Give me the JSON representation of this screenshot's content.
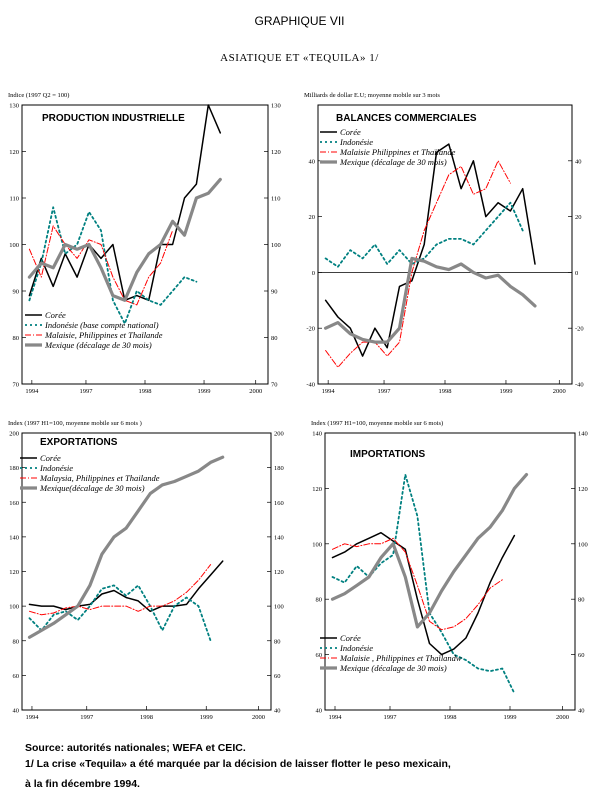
{
  "figure": {
    "title": "GRAPHIQUE VII",
    "subtitle": "ASIATIQUE ET «TEQUILA» 1/",
    "source": "Source:   autorités nationales; WEFA et CEIC.",
    "note1": "1/ La crise «Tequila» a été marquée par la décision de laisser flotter le peso mexicain,",
    "note2": "à la fin décembre 1994."
  },
  "chart_data": [
    {
      "type": "line",
      "title": "PRODUCTION INDUSTRIELLE",
      "unit_label": "Indice (1997 Q2 = 100)",
      "xticks": [
        "1994",
        "1997",
        "1998",
        "1999",
        "2000"
      ],
      "ylim": [
        70,
        130
      ],
      "yticks": [
        70,
        80,
        90,
        100,
        110,
        120,
        130
      ],
      "series": [
        {
          "name": "Corée",
          "color": "#000000",
          "style": "solid",
          "width": 1.5,
          "x": [
            0.0,
            0.05,
            0.1,
            0.15,
            0.2,
            0.25,
            0.3,
            0.35,
            0.4,
            0.45,
            0.5,
            0.55,
            0.6,
            0.65,
            0.7,
            0.75,
            0.8,
            0.85,
            0.9,
            0.95
          ],
          "y": [
            89,
            97,
            91,
            98,
            93,
            100,
            97,
            100,
            88,
            89,
            88,
            100,
            100,
            110,
            113,
            130,
            124,
            null,
            null,
            null
          ]
        },
        {
          "name": "Indonésie (base compte national)",
          "color": "#008080",
          "style": "dotted",
          "width": 1.8,
          "x": [
            0.0,
            0.05,
            0.1,
            0.15,
            0.2,
            0.25,
            0.3,
            0.35,
            0.4,
            0.45,
            0.5,
            0.55,
            0.6,
            0.65,
            0.7,
            0.75,
            0.8,
            0.85,
            0.9,
            0.95
          ],
          "y": [
            88,
            96,
            108,
            98,
            100,
            107,
            103,
            88,
            83,
            90,
            88,
            87,
            90,
            93,
            92,
            null,
            null,
            null,
            null,
            null
          ]
        },
        {
          "name": "Malaisie, Philippines et Thaïlande",
          "color": "#ff0000",
          "style": "dashdot",
          "width": 1.0,
          "x": [
            0.0,
            0.05,
            0.1,
            0.15,
            0.2,
            0.25,
            0.3,
            0.35,
            0.4,
            0.45,
            0.5,
            0.55,
            0.6,
            0.65,
            0.7,
            0.75,
            0.8,
            0.85,
            0.9,
            0.95
          ],
          "y": [
            99,
            93,
            104,
            100,
            97,
            101,
            100,
            93,
            88,
            87,
            93,
            96,
            103,
            null,
            null,
            null,
            null,
            null,
            null,
            null
          ]
        },
        {
          "name": "Mexique (décalage de 30 mois)",
          "color": "#888888",
          "style": "solid",
          "width": 3.2,
          "x": [
            0.0,
            0.05,
            0.1,
            0.15,
            0.2,
            0.25,
            0.3,
            0.35,
            0.4,
            0.45,
            0.5,
            0.55,
            0.6,
            0.65,
            0.7,
            0.75,
            0.8,
            0.85,
            0.9,
            0.95
          ],
          "y": [
            93,
            96,
            95,
            100,
            99,
            100,
            95,
            89,
            88,
            94,
            98,
            100,
            105,
            102,
            110,
            111,
            114,
            null,
            null,
            null
          ]
        }
      ]
    },
    {
      "type": "line",
      "title": "BALANCES COMMERCIALES",
      "unit_label": "Milliards de dollar E.U;  moyenne mobile sur 3 mois",
      "xticks": [
        "1994",
        "1997",
        "1998",
        "1999",
        "2000"
      ],
      "ylim": [
        -40,
        60
      ],
      "yticks": [
        -40,
        -20,
        0,
        20,
        40
      ],
      "series": [
        {
          "name": "Corée",
          "color": "#000000",
          "style": "solid",
          "width": 1.5,
          "x": [
            0.0,
            0.05,
            0.1,
            0.15,
            0.2,
            0.25,
            0.3,
            0.35,
            0.4,
            0.45,
            0.5,
            0.55,
            0.6,
            0.65,
            0.7,
            0.75,
            0.8,
            0.85,
            0.9,
            0.95
          ],
          "y": [
            -10,
            -16,
            -20,
            -30,
            -20,
            -27,
            -5,
            -3,
            10,
            43,
            46,
            30,
            40,
            20,
            25,
            22,
            30,
            3,
            null,
            null
          ]
        },
        {
          "name": "Indonésie",
          "color": "#008080",
          "style": "dotted",
          "width": 1.8,
          "x": [
            0.0,
            0.05,
            0.1,
            0.15,
            0.2,
            0.25,
            0.3,
            0.35,
            0.4,
            0.45,
            0.5,
            0.55,
            0.6,
            0.65,
            0.7,
            0.75,
            0.8,
            0.85,
            0.9,
            0.95
          ],
          "y": [
            5,
            2,
            8,
            5,
            10,
            3,
            8,
            3,
            5,
            10,
            12,
            12,
            10,
            15,
            20,
            25,
            15,
            null,
            null,
            null
          ]
        },
        {
          "name": "Malaisie Philippines et Thaïlande",
          "color": "#ff0000",
          "style": "dashdot",
          "width": 1.0,
          "x": [
            0.0,
            0.05,
            0.1,
            0.15,
            0.2,
            0.25,
            0.3,
            0.35,
            0.4,
            0.45,
            0.5,
            0.55,
            0.6,
            0.65,
            0.7,
            0.75,
            0.8,
            0.85,
            0.9,
            0.95
          ],
          "y": [
            -28,
            -34,
            -29,
            -25,
            -25,
            -30,
            -25,
            0,
            15,
            25,
            35,
            38,
            28,
            30,
            40,
            32,
            null,
            null,
            null,
            null
          ]
        },
        {
          "name": "Mexique (décalage de 30 mois)",
          "color": "#888888",
          "style": "solid",
          "width": 3.2,
          "x": [
            0.0,
            0.05,
            0.1,
            0.15,
            0.2,
            0.25,
            0.3,
            0.35,
            0.4,
            0.45,
            0.5,
            0.55,
            0.6,
            0.65,
            0.7,
            0.75,
            0.8,
            0.85,
            0.9,
            0.95
          ],
          "y": [
            -20,
            -18,
            -22,
            -24,
            -25,
            -25,
            -20,
            5,
            4,
            2,
            1,
            3,
            0,
            -2,
            -1,
            -5,
            -8,
            -12,
            null,
            null
          ]
        }
      ]
    },
    {
      "type": "line",
      "title": "EXPORTATIONS",
      "unit_label": "Index (1997 H1=100, moyenne mobile sur 6 mois )",
      "xticks": [
        "1994",
        "1997",
        "1998",
        "1999",
        "2000"
      ],
      "ylim": [
        40,
        200
      ],
      "yticks": [
        40,
        60,
        80,
        100,
        120,
        140,
        160,
        180,
        200
      ],
      "series": [
        {
          "name": "Corée",
          "color": "#000000",
          "style": "solid",
          "width": 1.5,
          "x": [
            0.0,
            0.05,
            0.1,
            0.15,
            0.2,
            0.25,
            0.3,
            0.35,
            0.4,
            0.45,
            0.5,
            0.55,
            0.6,
            0.65,
            0.7,
            0.75,
            0.8,
            0.85,
            0.9,
            0.95
          ],
          "y": [
            101,
            100,
            100,
            98,
            100,
            101,
            107,
            109,
            105,
            103,
            97,
            100,
            100,
            101,
            110,
            118,
            126,
            null,
            null,
            null
          ]
        },
        {
          "name": "Indonésie",
          "color": "#008080",
          "style": "dotted",
          "width": 1.8,
          "x": [
            0.0,
            0.05,
            0.1,
            0.15,
            0.2,
            0.25,
            0.3,
            0.35,
            0.4,
            0.45,
            0.5,
            0.55,
            0.6,
            0.65,
            0.7,
            0.75,
            0.8,
            0.85,
            0.9,
            0.95
          ],
          "y": [
            93,
            86,
            95,
            97,
            92,
            100,
            110,
            112,
            106,
            112,
            100,
            86,
            100,
            105,
            100,
            80,
            null,
            null,
            null,
            null
          ]
        },
        {
          "name": "Malaysia, Philippines et Thailande",
          "color": "#ff0000",
          "style": "dashdot",
          "width": 1.0,
          "x": [
            0.0,
            0.05,
            0.1,
            0.15,
            0.2,
            0.25,
            0.3,
            0.35,
            0.4,
            0.45,
            0.5,
            0.55,
            0.6,
            0.65,
            0.7,
            0.75,
            0.8,
            0.85,
            0.9,
            0.95
          ],
          "y": [
            97,
            95,
            96,
            99,
            100,
            98,
            100,
            100,
            100,
            97,
            100,
            100,
            103,
            108,
            115,
            124,
            null,
            null,
            null,
            null
          ]
        },
        {
          "name": "Mexique(décalage de 30 mois)",
          "color": "#888888",
          "style": "solid",
          "width": 3.2,
          "x": [
            0.0,
            0.05,
            0.1,
            0.15,
            0.2,
            0.25,
            0.3,
            0.35,
            0.4,
            0.45,
            0.5,
            0.55,
            0.6,
            0.65,
            0.7,
            0.75,
            0.8,
            0.85,
            0.9,
            0.95
          ],
          "y": [
            82,
            86,
            90,
            95,
            100,
            112,
            130,
            140,
            145,
            155,
            165,
            170,
            172,
            175,
            178,
            183,
            186,
            null,
            null,
            null
          ]
        }
      ]
    },
    {
      "type": "line",
      "title": "IMPORTATIONS",
      "unit_label": "Index (1997 H1=100, moyenne mobile sur 6 mois)",
      "xticks": [
        "1994",
        "1997",
        "1998",
        "1999",
        "2000"
      ],
      "ylim": [
        40,
        140
      ],
      "yticks": [
        40,
        60,
        80,
        100,
        120,
        140
      ],
      "series": [
        {
          "name": "Corée",
          "color": "#000000",
          "style": "solid",
          "width": 1.5,
          "x": [
            0.0,
            0.05,
            0.1,
            0.15,
            0.2,
            0.25,
            0.3,
            0.35,
            0.4,
            0.45,
            0.5,
            0.55,
            0.6,
            0.65,
            0.7,
            0.75,
            0.8,
            0.85,
            0.9,
            0.95
          ],
          "y": [
            95,
            97,
            100,
            102,
            104,
            101,
            98,
            80,
            64,
            60,
            62,
            66,
            75,
            86,
            95,
            103,
            null,
            null,
            null,
            null
          ]
        },
        {
          "name": "Indonésie",
          "color": "#008080",
          "style": "dotted",
          "width": 1.8,
          "x": [
            0.0,
            0.05,
            0.1,
            0.15,
            0.2,
            0.25,
            0.3,
            0.35,
            0.4,
            0.45,
            0.5,
            0.55,
            0.6,
            0.65,
            0.7,
            0.75,
            0.8,
            0.85,
            0.9,
            0.95
          ],
          "y": [
            88,
            86,
            92,
            88,
            93,
            96,
            125,
            110,
            75,
            68,
            60,
            58,
            55,
            54,
            55,
            46,
            null,
            null,
            null,
            null
          ]
        },
        {
          "name": "Malaisie , Philippines et Thaïlandw",
          "color": "#ff0000",
          "style": "dashdot",
          "width": 1.0,
          "x": [
            0.0,
            0.05,
            0.1,
            0.15,
            0.2,
            0.25,
            0.3,
            0.35,
            0.4,
            0.45,
            0.5,
            0.55,
            0.6,
            0.65,
            0.7,
            0.75,
            0.8,
            0.85,
            0.9,
            0.95
          ],
          "y": [
            98,
            100,
            99,
            100,
            100,
            102,
            97,
            85,
            72,
            69,
            70,
            73,
            78,
            84,
            87,
            null,
            null,
            null,
            null,
            null
          ]
        },
        {
          "name": "Mexique (décalage de 30 mois)",
          "color": "#888888",
          "style": "solid",
          "width": 3.2,
          "x": [
            0.0,
            0.05,
            0.1,
            0.15,
            0.2,
            0.25,
            0.3,
            0.35,
            0.4,
            0.45,
            0.5,
            0.55,
            0.6,
            0.65,
            0.7,
            0.75,
            0.8,
            0.85,
            0.9,
            0.95
          ],
          "y": [
            80,
            82,
            85,
            88,
            95,
            100,
            88,
            70,
            75,
            83,
            90,
            96,
            102,
            106,
            112,
            120,
            125,
            null,
            null,
            null
          ]
        }
      ]
    }
  ]
}
